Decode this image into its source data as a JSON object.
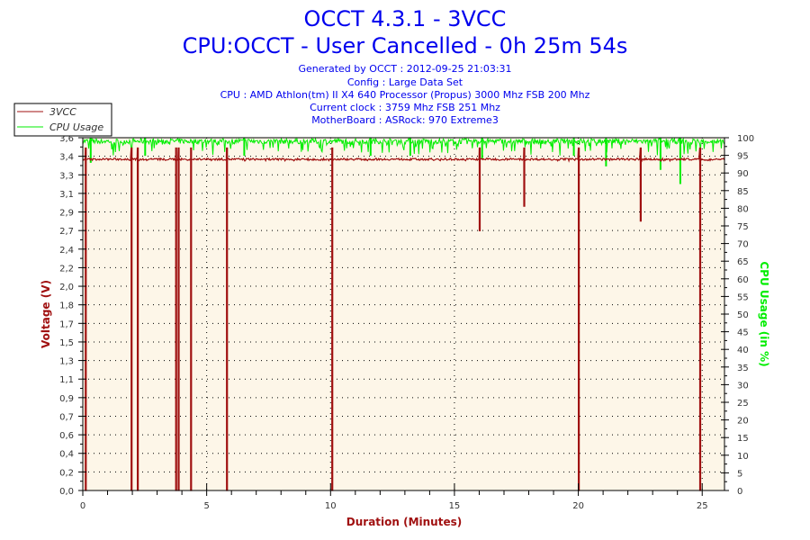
{
  "chart_data": {
    "type": "line",
    "title": "OCCT 4.3.1 - 3VCC",
    "subtitle": "CPU:OCCT - User Cancelled - 0h 25m 54s",
    "info_lines": [
      "Generated by OCCT : 2012-09-25 21:03:31",
      "Config : Large Data Set",
      "CPU : AMD Athlon(tm) II X4 640 Processor (Propus) 3000 Mhz FSB 200 Mhz",
      "Current clock : 3759 Mhz FSB 251 Mhz",
      "MotherBoard : ASRock: 970 Extreme3"
    ],
    "xlabel": "Duration (Minutes)",
    "ylabel": "Voltage (V)",
    "y2label": "CPU Usage (in %)",
    "xlim": [
      0,
      25.9
    ],
    "ylim": [
      0,
      3.6
    ],
    "y2lim": [
      0,
      100
    ],
    "x_ticks": [
      "0",
      "5",
      "10",
      "15",
      "20",
      "25"
    ],
    "y_ticks": [
      "0,0",
      "0,2",
      "0,4",
      "0,6",
      "0,7",
      "0,9",
      "1,1",
      "1,3",
      "1,5",
      "1,7",
      "1,8",
      "2,0",
      "2,2",
      "2,4",
      "2,7",
      "2,9",
      "3,1",
      "3,3",
      "3,4",
      "3,6"
    ],
    "y2_ticks": [
      "0",
      "5",
      "10",
      "15",
      "20",
      "25",
      "30",
      "35",
      "40",
      "45",
      "50",
      "55",
      "60",
      "65",
      "70",
      "75",
      "80",
      "85",
      "90",
      "95",
      "100"
    ],
    "grid": true,
    "legend_position": "top-left",
    "series": [
      {
        "name": "3VCC",
        "color": "#a01010",
        "baseline": 3.38,
        "dips": [
          [
            0.1,
            0
          ],
          [
            1.95,
            0
          ],
          [
            2.2,
            0
          ],
          [
            3.75,
            0
          ],
          [
            3.85,
            0
          ],
          [
            4.35,
            0
          ],
          [
            5.8,
            0
          ],
          [
            10.05,
            0
          ],
          [
            16.0,
            2.65
          ],
          [
            17.8,
            2.9
          ],
          [
            20.0,
            0
          ],
          [
            22.5,
            2.75
          ],
          [
            24.9,
            0
          ]
        ]
      },
      {
        "name": "CPU Usage",
        "color": "#00ee00",
        "baseline": 99,
        "dips": [
          [
            0.3,
            93
          ],
          [
            2.5,
            95
          ],
          [
            6.5,
            95
          ],
          [
            11.6,
            95
          ],
          [
            13.2,
            95
          ],
          [
            16.1,
            94
          ],
          [
            19.8,
            95
          ],
          [
            21.1,
            92
          ],
          [
            23.3,
            91
          ],
          [
            24.1,
            87
          ]
        ]
      }
    ]
  },
  "colors": {
    "plot_bg": "#fdf6e8",
    "title": "#0000ee",
    "axis_label_left": "#a01010",
    "axis_label_right": "#00ee00",
    "xlabel": "#a01010"
  }
}
